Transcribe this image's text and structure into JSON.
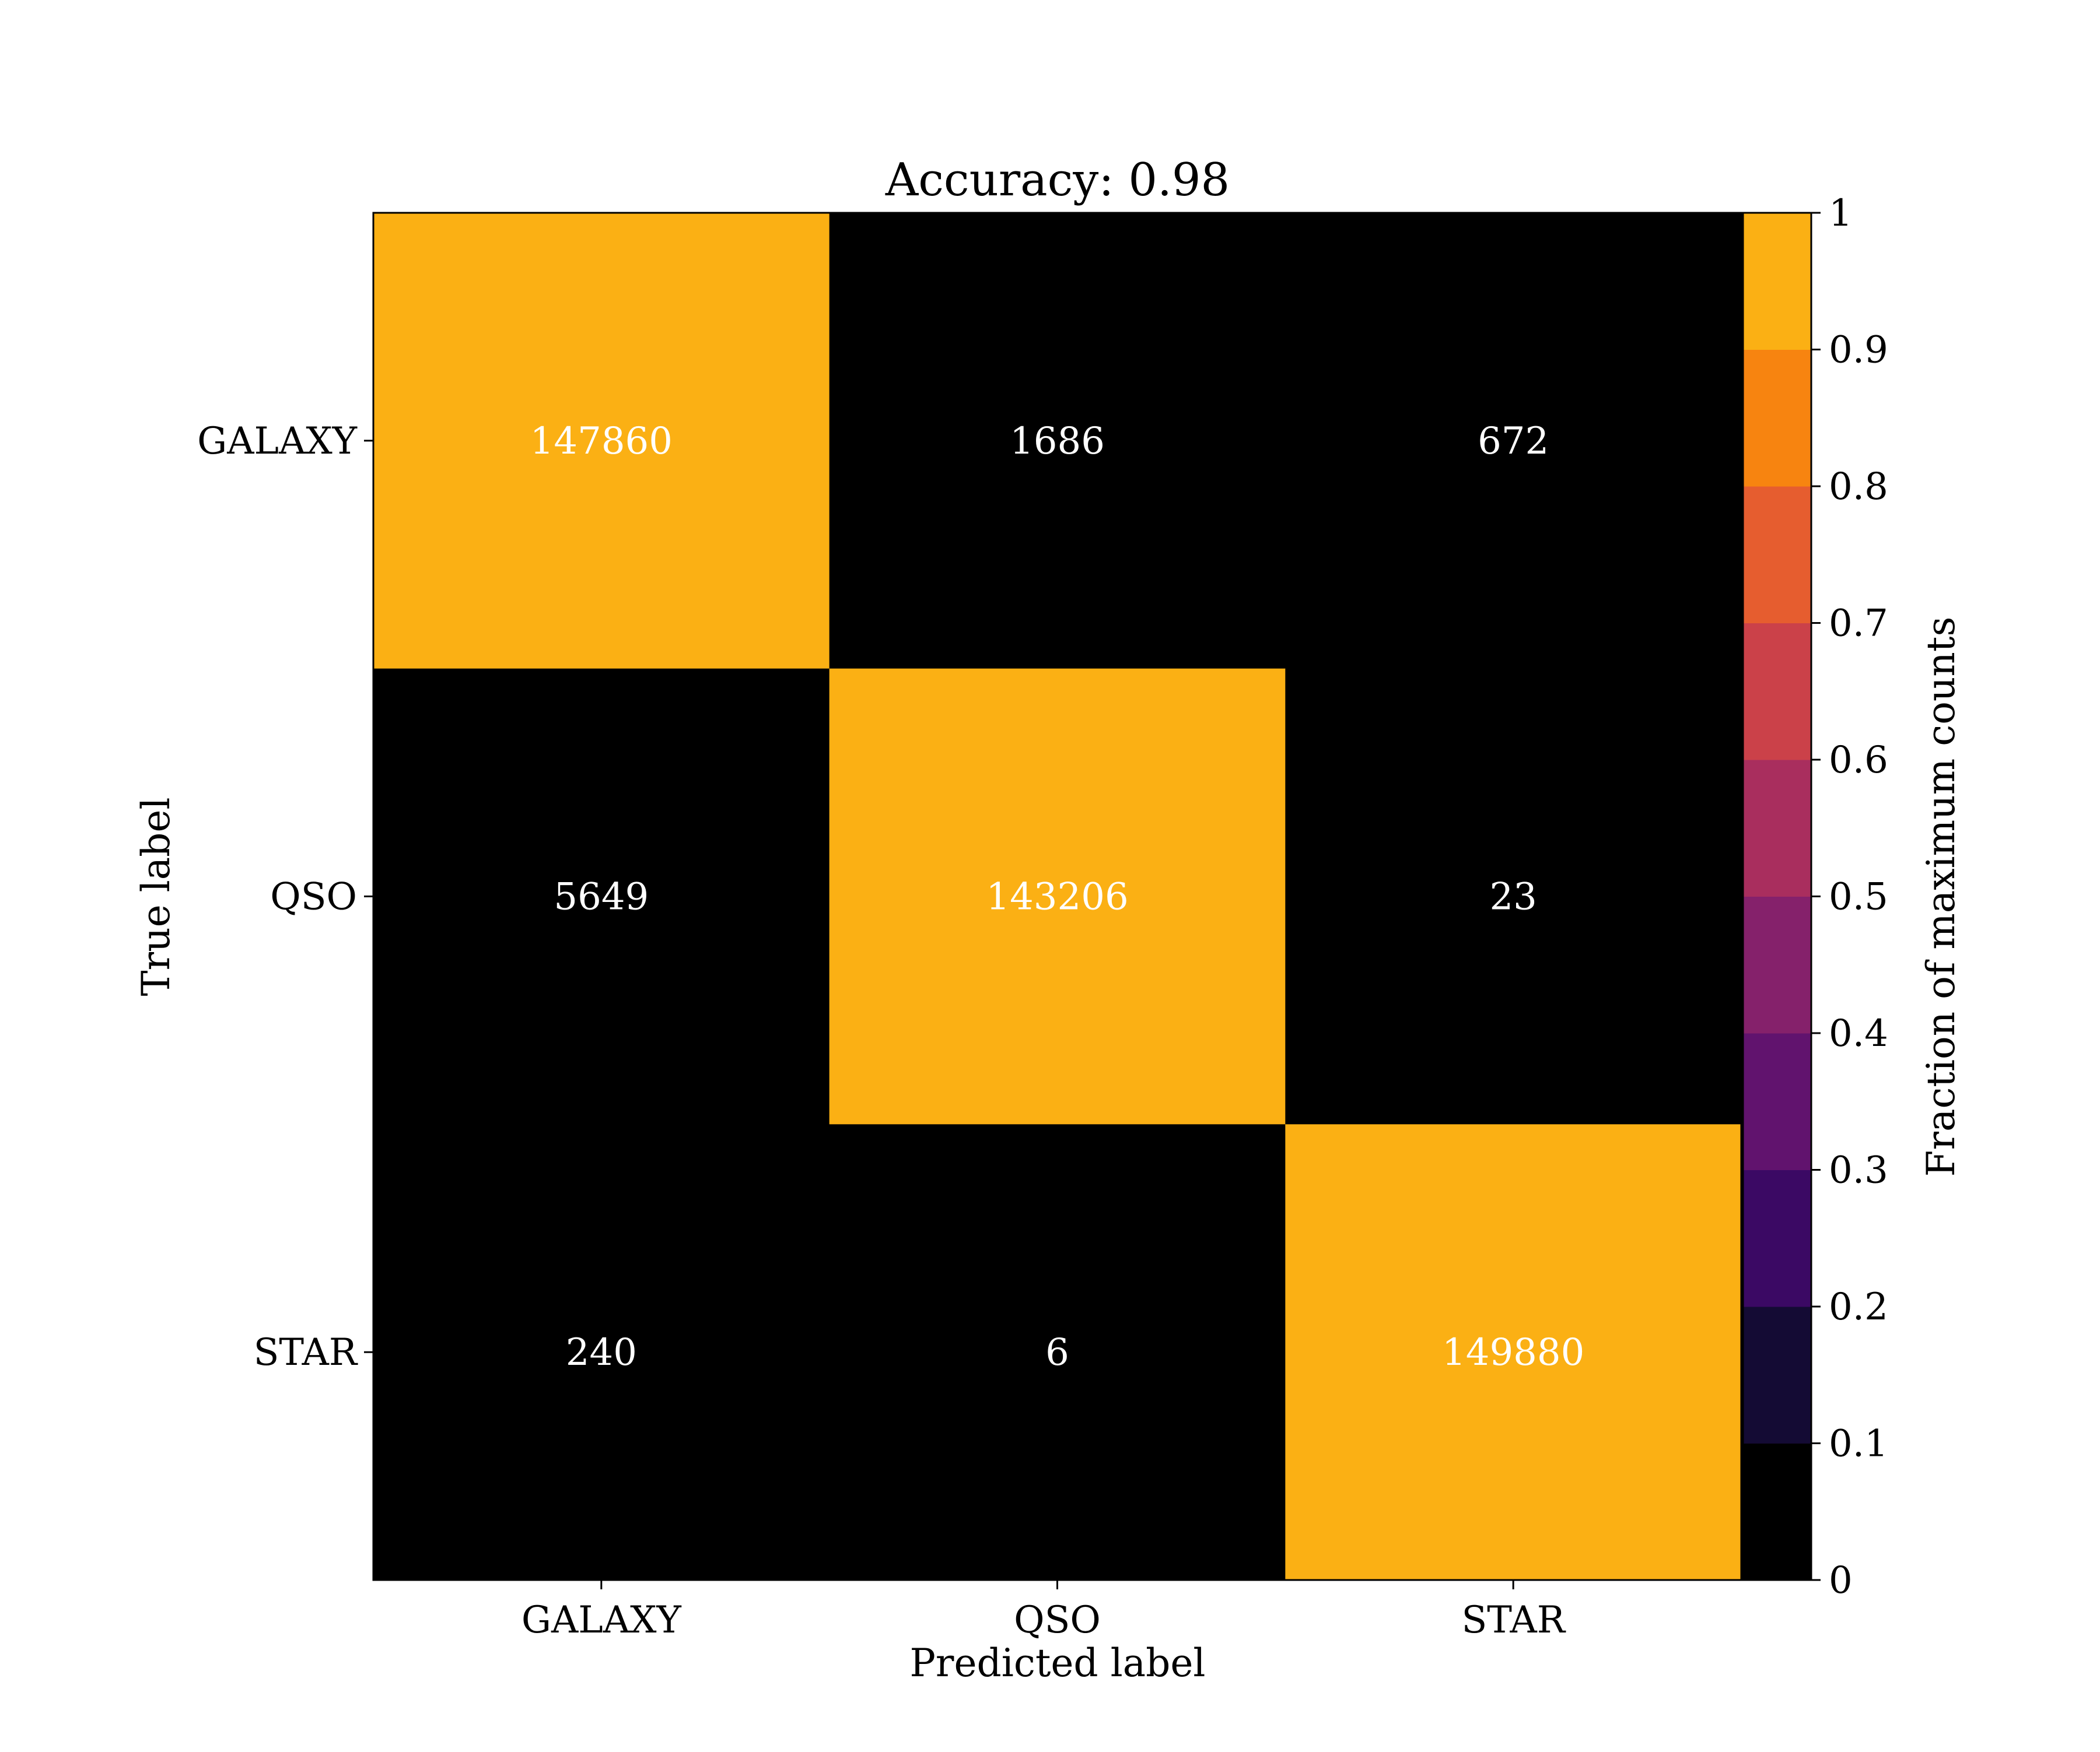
{
  "chart_data": {
    "type": "heatmap",
    "title": "Accuracy: 0.98",
    "xlabel": "Predicted label",
    "ylabel": "True label",
    "x_categories": [
      "GALAXY",
      "QSO",
      "STAR"
    ],
    "y_categories": [
      "GALAXY",
      "QSO",
      "STAR"
    ],
    "values": [
      [
        147860,
        1686,
        672
      ],
      [
        5649,
        143206,
        23
      ],
      [
        240,
        6,
        149880
      ]
    ],
    "colorbar": {
      "label": "Fraction of maximum counts",
      "range": [
        0,
        1
      ],
      "ticks": [
        "0",
        "0.1",
        "0.2",
        "0.3",
        "0.4",
        "0.5",
        "0.6",
        "0.7",
        "0.8",
        "0.9",
        "1"
      ],
      "levels": [
        {
          "from": 0.0,
          "to": 0.1,
          "color": "#000000"
        },
        {
          "from": 0.1,
          "to": 0.2,
          "color": "#140b34"
        },
        {
          "from": 0.2,
          "to": 0.3,
          "color": "#3b0964"
        },
        {
          "from": 0.3,
          "to": 0.4,
          "color": "#61136e"
        },
        {
          "from": 0.4,
          "to": 0.5,
          "color": "#85216b"
        },
        {
          "from": 0.5,
          "to": 0.6,
          "color": "#a92e5e"
        },
        {
          "from": 0.6,
          "to": 0.7,
          "color": "#cb4149"
        },
        {
          "from": 0.7,
          "to": 0.8,
          "color": "#e65d2f"
        },
        {
          "from": 0.8,
          "to": 0.9,
          "color": "#f78410"
        },
        {
          "from": 0.9,
          "to": 1.0,
          "color": "#fbb014"
        }
      ]
    },
    "text_color": "#ffffff",
    "grid": false
  }
}
